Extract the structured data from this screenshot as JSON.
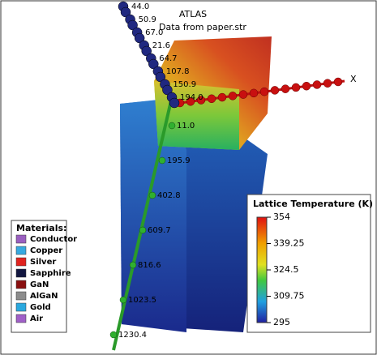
{
  "header": {
    "title": "ATLAS",
    "subtitle": "Data from paper.str"
  },
  "green_axis_labels": [
    "11.0",
    "195.9",
    "402.8",
    "609.7",
    "816.6",
    "1023.5",
    "1230.4"
  ],
  "blue_axis_labels": [
    "44.0",
    "50.9",
    "67.0",
    "21.6",
    "64.7",
    "107.8",
    "150.9",
    "194.0"
  ],
  "x_axis_label": "X",
  "materials": {
    "title": "Materials:",
    "items": [
      {
        "label": "Conductor",
        "color": "#9a5fc0"
      },
      {
        "label": "Copper",
        "color": "#36a9e0"
      },
      {
        "label": "Silver",
        "color": "#e0231e"
      },
      {
        "label": "Sapphire",
        "color": "#121640"
      },
      {
        "label": "GaN",
        "color": "#8a1010"
      },
      {
        "label": "AlGaN",
        "color": "#8c8c8c"
      },
      {
        "label": "Gold",
        "color": "#2aa8de"
      },
      {
        "label": "Air",
        "color": "#a060c8"
      }
    ]
  },
  "colorbar": {
    "title": "Lattice Temperature (K)",
    "ticks": [
      354,
      339.25,
      324.5,
      309.75,
      295
    ]
  }
}
